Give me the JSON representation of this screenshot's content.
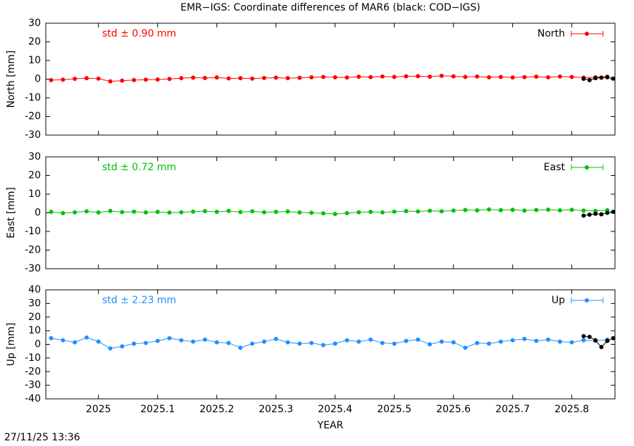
{
  "title": "EMR−IGS: Coordinate differences of MAR6 (black: COD−IGS)",
  "x_label": "YEAR",
  "timestamp": "27/11/25 13:36",
  "chart_data": [
    {
      "type": "line",
      "y_label": "North [mm]",
      "annotation": "std ± 0.90 mm",
      "xlim": [
        2024.911,
        2025.873
      ],
      "xticks": [
        2025,
        2025.1,
        2025.2,
        2025.3,
        2025.4,
        2025.5,
        2025.6,
        2025.7,
        2025.8
      ],
      "ylim": [
        -30,
        30
      ],
      "yticks": [
        -30,
        -20,
        -10,
        0,
        10,
        20,
        30
      ],
      "series": [
        {
          "name": "North",
          "color": "#ff0000",
          "x": [
            2024.92,
            2024.94,
            2024.96,
            2024.98,
            2025,
            2025.02,
            2025.04,
            2025.06,
            2025.08,
            2025.1,
            2025.12,
            2025.14,
            2025.16,
            2025.18,
            2025.2,
            2025.22,
            2025.24,
            2025.26,
            2025.28,
            2025.3,
            2025.32,
            2025.34,
            2025.36,
            2025.38,
            2025.4,
            2025.42,
            2025.44,
            2025.46,
            2025.48,
            2025.5,
            2025.52,
            2025.54,
            2025.56,
            2025.58,
            2025.6,
            2025.62,
            2025.64,
            2025.66,
            2025.68,
            2025.7,
            2025.72,
            2025.74,
            2025.76,
            2025.78,
            2025.8,
            2025.82,
            2025.84,
            2025.86
          ],
          "values": [
            -0.5,
            -0.3,
            0.2,
            0.5,
            0.3,
            -1.2,
            -0.8,
            -0.5,
            -0.3,
            -0.2,
            0.1,
            0.5,
            0.8,
            0.6,
            0.9,
            0.4,
            0.5,
            0.3,
            0.6,
            0.8,
            0.5,
            0.7,
            1.0,
            1.2,
            1.0,
            0.9,
            1.3,
            1.1,
            1.4,
            1.2,
            1.5,
            1.6,
            1.3,
            1.8,
            1.5,
            1.2,
            1.4,
            1.0,
            1.2,
            0.9,
            1.1,
            1.3,
            1.0,
            1.4,
            1.2,
            0.8,
            1.0,
            1.3
          ]
        },
        {
          "color": "#000000",
          "x": [
            2025.82,
            2025.83,
            2025.84,
            2025.85,
            2025.86,
            2025.87
          ],
          "values": [
            0.2,
            -0.5,
            0.5,
            0.8,
            1.0,
            0.3
          ]
        }
      ]
    },
    {
      "type": "line",
      "y_label": "East [mm]",
      "annotation": "std ± 0.72 mm",
      "xlim": [
        2024.911,
        2025.873
      ],
      "xticks": [
        2025,
        2025.1,
        2025.2,
        2025.3,
        2025.4,
        2025.5,
        2025.6,
        2025.7,
        2025.8
      ],
      "ylim": [
        -30,
        30
      ],
      "yticks": [
        -30,
        -20,
        -10,
        0,
        10,
        20,
        30
      ],
      "series": [
        {
          "name": "East",
          "color": "#00c000",
          "x": [
            2024.92,
            2024.94,
            2024.96,
            2024.98,
            2025,
            2025.02,
            2025.04,
            2025.06,
            2025.08,
            2025.1,
            2025.12,
            2025.14,
            2025.16,
            2025.18,
            2025.2,
            2025.22,
            2025.24,
            2025.26,
            2025.28,
            2025.3,
            2025.32,
            2025.34,
            2025.36,
            2025.38,
            2025.4,
            2025.42,
            2025.44,
            2025.46,
            2025.48,
            2025.5,
            2025.52,
            2025.54,
            2025.56,
            2025.58,
            2025.6,
            2025.62,
            2025.64,
            2025.66,
            2025.68,
            2025.7,
            2025.72,
            2025.74,
            2025.76,
            2025.78,
            2025.8,
            2025.82,
            2025.84,
            2025.86
          ],
          "values": [
            0.5,
            -0.2,
            0.3,
            0.8,
            0.2,
            1.0,
            0.4,
            0.6,
            0.2,
            0.5,
            0.1,
            0.3,
            0.6,
            0.9,
            0.5,
            1.0,
            0.4,
            0.8,
            0.3,
            0.5,
            0.7,
            0.2,
            0.0,
            -0.3,
            -0.6,
            -0.2,
            0.3,
            0.5,
            0.2,
            0.6,
            0.9,
            0.7,
            1.1,
            0.8,
            1.2,
            1.5,
            1.3,
            1.8,
            1.4,
            1.6,
            1.2,
            1.5,
            1.7,
            1.3,
            1.6,
            1.2,
            1.0,
            1.4
          ]
        },
        {
          "color": "#000000",
          "x": [
            2025.82,
            2025.83,
            2025.84,
            2025.85,
            2025.86,
            2025.87
          ],
          "values": [
            -1.5,
            -1.0,
            -0.5,
            -0.8,
            0.0,
            0.5
          ]
        }
      ]
    },
    {
      "type": "line",
      "y_label": "Up [mm]",
      "annotation": "std ± 2.23 mm",
      "xlim": [
        2024.911,
        2025.873
      ],
      "xticks": [
        2025,
        2025.1,
        2025.2,
        2025.3,
        2025.4,
        2025.5,
        2025.6,
        2025.7,
        2025.8
      ],
      "ylim": [
        -40,
        40
      ],
      "yticks": [
        -40,
        -30,
        -20,
        -10,
        0,
        10,
        20,
        30,
        40
      ],
      "series": [
        {
          "name": "Up",
          "color": "#1e90ff",
          "x": [
            2024.92,
            2024.94,
            2024.96,
            2024.98,
            2025,
            2025.02,
            2025.04,
            2025.06,
            2025.08,
            2025.1,
            2025.12,
            2025.14,
            2025.16,
            2025.18,
            2025.2,
            2025.22,
            2025.24,
            2025.26,
            2025.28,
            2025.3,
            2025.32,
            2025.34,
            2025.36,
            2025.38,
            2025.4,
            2025.42,
            2025.44,
            2025.46,
            2025.48,
            2025.5,
            2025.52,
            2025.54,
            2025.56,
            2025.58,
            2025.6,
            2025.62,
            2025.64,
            2025.66,
            2025.68,
            2025.7,
            2025.72,
            2025.74,
            2025.76,
            2025.78,
            2025.8,
            2025.82,
            2025.84,
            2025.86
          ],
          "values": [
            4.5,
            3.0,
            1.5,
            5.0,
            2.0,
            -3.0,
            -1.5,
            0.5,
            1.0,
            2.5,
            4.5,
            3.0,
            2.0,
            3.5,
            1.5,
            1.0,
            -2.5,
            0.5,
            2.0,
            4.0,
            1.5,
            0.5,
            1.0,
            -0.5,
            0.5,
            3.0,
            2.0,
            3.5,
            1.0,
            0.5,
            2.5,
            3.5,
            0.0,
            2.0,
            1.5,
            -2.5,
            1.0,
            0.5,
            2.0,
            3.0,
            4.0,
            2.5,
            3.5,
            2.0,
            1.5,
            3.0,
            2.5,
            3.5
          ]
        },
        {
          "color": "#000000",
          "x": [
            2025.82,
            2025.83,
            2025.84,
            2025.85,
            2025.86,
            2025.87
          ],
          "values": [
            6.0,
            5.5,
            3.0,
            -2.0,
            2.5,
            4.5
          ]
        }
      ]
    }
  ]
}
